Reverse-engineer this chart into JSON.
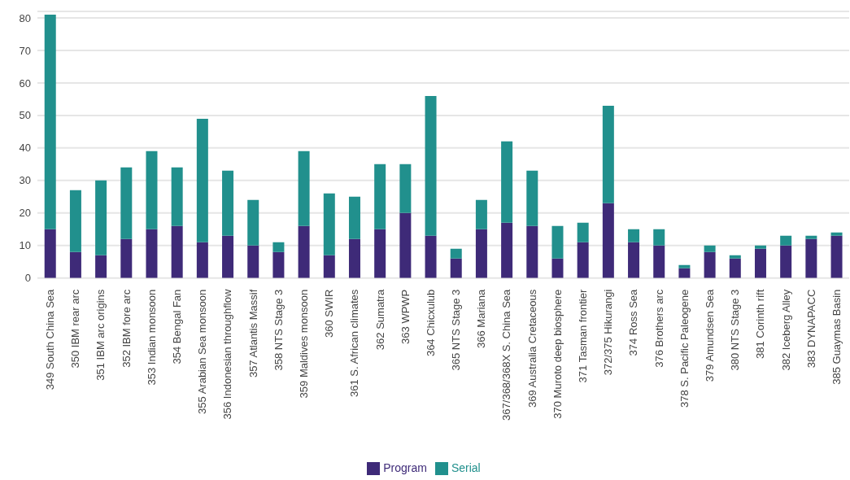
{
  "chart_data": {
    "type": "bar",
    "stacked": true,
    "categories": [
      "349 South China Sea",
      "350 IBM rear arc",
      "351 IBM arc origins",
      "352 IBM fore arc",
      "353 Indian monsoon",
      "354 Bengal Fan",
      "355 Arabian Sea monsoon",
      "356 Indonesian throughflow",
      "357 Atlantis Massif",
      "358 NTS Stage 3",
      "359 Maldives monsoon",
      "360 SWIR",
      "361 S. African climates",
      "362 Sumatra",
      "363 WPWP",
      "364 Chicxulub",
      "365 NTS Stage 3",
      "366 Mariana",
      "367/368/368X S. China Sea",
      "369 Australia Cretaceous",
      "370 Muroto deep biosphere",
      "371 Tasman frontier",
      "372/375 Hikurangi",
      "374 Ross Sea",
      "376 Brothers arc",
      "378 S. Pacific Paleogene",
      "379 Amundsen Sea",
      "380 NTS Stage 3",
      "381 Corinth rift",
      "382 Iceberg Alley",
      "383 DYNAPACC",
      "385 Guaymas Basin"
    ],
    "series": [
      {
        "name": "Program",
        "color": "#3e2a78",
        "values": [
          15,
          8,
          7,
          12,
          15,
          16,
          11,
          13,
          10,
          8,
          16,
          7,
          12,
          15,
          20,
          13,
          6,
          15,
          17,
          16,
          6,
          11,
          23,
          11,
          10,
          3,
          8,
          6,
          9,
          10,
          12,
          13
        ]
      },
      {
        "name": "Serial",
        "color": "#21908d",
        "values": [
          66,
          19,
          23,
          22,
          24,
          18,
          38,
          20,
          14,
          3,
          23,
          19,
          13,
          20,
          15,
          43,
          3,
          9,
          25,
          17,
          10,
          6,
          30,
          4,
          5,
          1,
          2,
          1,
          1,
          3,
          1,
          1
        ]
      }
    ],
    "ylim": [
      0,
      82
    ],
    "yticks": [
      0,
      10,
      20,
      30,
      40,
      50,
      60,
      70,
      80
    ],
    "grid": "y",
    "legend": "bottom"
  }
}
